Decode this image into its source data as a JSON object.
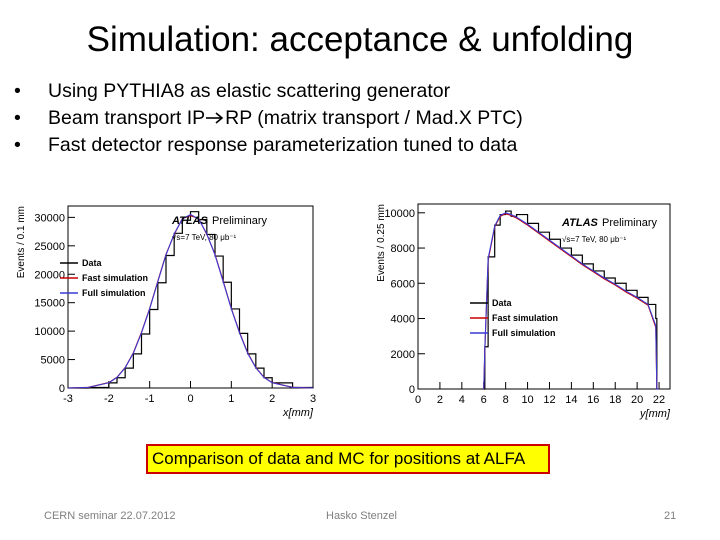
{
  "slide": {
    "title": "Simulation: acceptance & unfolding",
    "bullets": [
      "Using PYTHIA8 as elastic scattering generator",
      "Beam transport IP",
      "RP (matrix transport / Mad.X PTC)",
      "Fast detector response parameterization tuned to data"
    ],
    "caption": "Comparison of data and MC for positions at ALFA",
    "footer": {
      "left": "CERN seminar 22.07.2012",
      "center": "Hasko Stenzel",
      "page": "21"
    }
  },
  "colors": {
    "caption_bg": "#ffff00",
    "caption_border": "#cc0000",
    "data": "#000000",
    "fast": "#cc0000",
    "full": "#3a3ad6"
  },
  "chart_data": [
    {
      "type": "line",
      "title": "",
      "xlabel": "x[mm]",
      "ylabel": "Events / 0.1 mm",
      "xlim": [
        -3,
        3
      ],
      "ylim": [
        0,
        32000
      ],
      "xticks": [
        "-3",
        "-2",
        "-1",
        "0",
        "1",
        "2",
        "3"
      ],
      "yticks": [
        "0",
        "5000",
        "10000",
        "15000",
        "20000",
        "25000",
        "30000"
      ],
      "atlas_label": "ATLAS",
      "atlas_sub": "Preliminary",
      "energy_label": "√s=7 TeV, 80 μb⁻¹",
      "legend": [
        "Data",
        "Fast simulation",
        "Full simulation"
      ],
      "series": [
        {
          "name": "Data",
          "x": [
            -3.0,
            -2.5,
            -2.0,
            -1.8,
            -1.6,
            -1.4,
            -1.2,
            -1.0,
            -0.8,
            -0.6,
            -0.4,
            -0.2,
            0.0,
            0.2,
            0.4,
            0.6,
            0.8,
            1.0,
            1.2,
            1.4,
            1.6,
            1.8,
            2.0,
            2.5,
            3.0
          ],
          "values": [
            0,
            100,
            900,
            1800,
            3500,
            6000,
            9500,
            13800,
            18500,
            23300,
            27200,
            29500,
            31000,
            29600,
            27000,
            23200,
            18600,
            13900,
            9600,
            6000,
            3500,
            1800,
            900,
            100,
            0
          ]
        },
        {
          "name": "Fast simulation",
          "x": [
            -3.0,
            -2.5,
            -2.0,
            -1.8,
            -1.6,
            -1.4,
            -1.2,
            -1.0,
            -0.8,
            -0.6,
            -0.4,
            -0.2,
            0.0,
            0.2,
            0.4,
            0.6,
            0.8,
            1.0,
            1.2,
            1.4,
            1.6,
            1.8,
            2.0,
            2.5,
            3.0
          ],
          "values": [
            0,
            120,
            950,
            1900,
            3600,
            6200,
            9800,
            14000,
            18800,
            23500,
            27000,
            29800,
            30300,
            29800,
            27000,
            23500,
            18800,
            14000,
            9800,
            6200,
            3600,
            1900,
            950,
            120,
            0
          ]
        },
        {
          "name": "Full simulation",
          "x": [
            -3.0,
            -2.5,
            -2.0,
            -1.8,
            -1.6,
            -1.4,
            -1.2,
            -1.0,
            -0.8,
            -0.6,
            -0.4,
            -0.2,
            0.0,
            0.2,
            0.4,
            0.6,
            0.8,
            1.0,
            1.2,
            1.4,
            1.6,
            1.8,
            2.0,
            2.5,
            3.0
          ],
          "values": [
            0,
            110,
            920,
            1850,
            3550,
            6100,
            9700,
            13900,
            18700,
            23400,
            27100,
            29700,
            30500,
            29700,
            27100,
            23400,
            18700,
            13900,
            9700,
            6100,
            3550,
            1850,
            920,
            110,
            0
          ]
        }
      ]
    },
    {
      "type": "line",
      "title": "",
      "xlabel": "y[mm]",
      "ylabel": "Events / 0.25 mm",
      "xlim": [
        0,
        23
      ],
      "ylim": [
        0,
        10500
      ],
      "xticks": [
        "0",
        "2",
        "4",
        "6",
        "8",
        "10",
        "12",
        "14",
        "16",
        "18",
        "20",
        "22"
      ],
      "yticks": [
        "0",
        "2000",
        "4000",
        "6000",
        "8000",
        "10000"
      ],
      "atlas_label": "ATLAS",
      "atlas_sub": "Preliminary",
      "energy_label": "√s=7 TeV, 80 μb⁻¹",
      "legend": [
        "Data",
        "Fast simulation",
        "Full simulation"
      ],
      "series": [
        {
          "name": "Data",
          "x": [
            6.0,
            6.1,
            6.4,
            7.0,
            7.5,
            8.0,
            8.5,
            9.0,
            10,
            11,
            12,
            13,
            14,
            15,
            16,
            17,
            18,
            19,
            20,
            21,
            21.7,
            21.8,
            22.0
          ],
          "values": [
            0,
            2400,
            7500,
            9300,
            9900,
            10100,
            9800,
            9900,
            9400,
            8900,
            8500,
            8000,
            7600,
            7100,
            6700,
            6300,
            6000,
            5600,
            5200,
            4800,
            4000,
            0,
            0
          ]
        },
        {
          "name": "Fast simulation",
          "x": [
            6.0,
            6.1,
            6.4,
            7.0,
            7.5,
            8.0,
            8.5,
            9.0,
            10,
            11,
            12,
            13,
            14,
            15,
            16,
            17,
            18,
            19,
            20,
            21,
            21.7,
            21.8,
            22.0
          ],
          "values": [
            0,
            2200,
            7300,
            9200,
            9800,
            9950,
            9850,
            9700,
            9300,
            8850,
            8400,
            7950,
            7500,
            7050,
            6650,
            6250,
            5900,
            5500,
            5150,
            4750,
            3500,
            0,
            0
          ]
        },
        {
          "name": "Full simulation",
          "x": [
            6.0,
            6.1,
            6.4,
            7.0,
            7.5,
            8.0,
            8.5,
            9.0,
            10,
            11,
            12,
            13,
            14,
            15,
            16,
            17,
            18,
            19,
            20,
            21,
            21.7,
            21.8,
            22.0
          ],
          "values": [
            0,
            2300,
            7400,
            9250,
            9850,
            10000,
            9900,
            9750,
            9350,
            8900,
            8450,
            8000,
            7550,
            7100,
            6700,
            6300,
            5950,
            5550,
            5200,
            4800,
            3600,
            0,
            0
          ]
        }
      ]
    }
  ]
}
